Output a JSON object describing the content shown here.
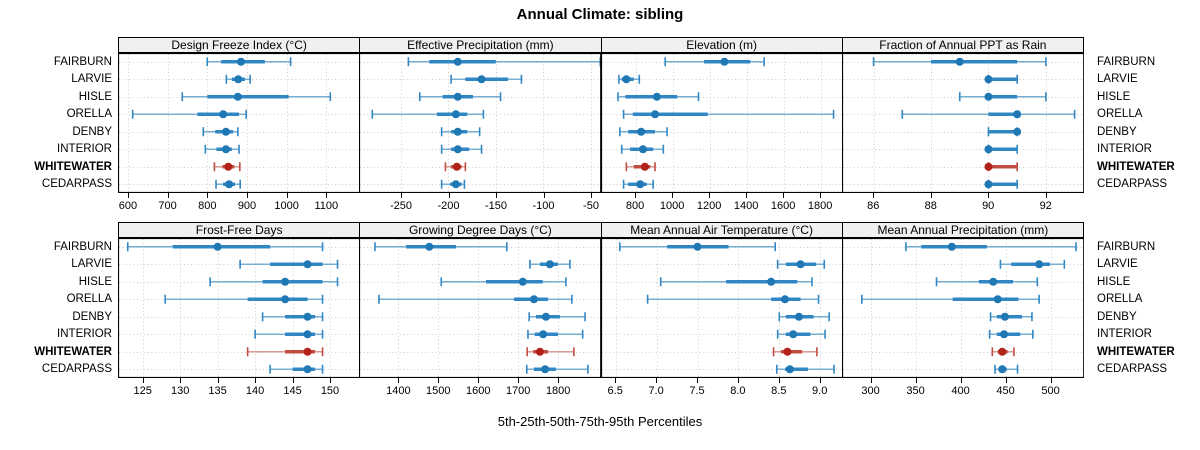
{
  "title": "Annual Climate: sibling",
  "caption": "5th-25th-50th-75th-95th Percentiles",
  "row_labels": [
    "FAIRBURN",
    "LARVIE",
    "HISLE",
    "ORELLA",
    "DENBY",
    "INTERIOR",
    "WHITEWATER",
    "CEDARPASS"
  ],
  "highlight_row": "WHITEWATER",
  "percentiles": [
    "5th",
    "25th",
    "50th",
    "75th",
    "95th"
  ],
  "colors": {
    "blue_dot": "#1F77B4",
    "blue_band": "#3187C4",
    "blue_range": "#77AFD3",
    "red_dot": "#B22218",
    "red_band": "#C14C41",
    "red_range": "#DB9C94",
    "strip_bg": "#F0F0F0",
    "grid": "#CDCDCD",
    "border": "#000000"
  },
  "chart_data": [
    {
      "type": "scatter",
      "title": "Design Freeze Index (°C)",
      "xlim": [
        575,
        1183
      ],
      "ticks": [
        600,
        700,
        800,
        900,
        1000,
        1100
      ],
      "tick_labels": [
        "600",
        "700",
        "800",
        "900",
        "1000",
        "1100"
      ],
      "categories": [
        "FAIRBURN",
        "LARVIE",
        "HISLE",
        "ORELLA",
        "DENBY",
        "INTERIOR",
        "WHITEWATER",
        "CEDARPASS"
      ],
      "values": [
        [
          800,
          835,
          885,
          945,
          1010
        ],
        [
          848,
          862,
          878,
          895,
          908
        ],
        [
          737,
          800,
          877,
          1005,
          1110
        ],
        [
          612,
          775,
          840,
          880,
          898
        ],
        [
          790,
          820,
          847,
          865,
          877
        ],
        [
          795,
          823,
          847,
          862,
          880
        ],
        [
          818,
          838,
          853,
          868,
          882
        ],
        [
          822,
          840,
          855,
          870,
          883
        ]
      ]
    },
    {
      "type": "scatter",
      "title": "Effective Precipitation (mm)",
      "xlim": [
        -294,
        -40
      ],
      "ticks": [
        -250,
        -200,
        -150,
        -100,
        -50
      ],
      "tick_labels": [
        "-250",
        "-200",
        "-150",
        "-100",
        "-50"
      ],
      "categories": [
        "FAIRBURN",
        "LARVIE",
        "HISLE",
        "ORELLA",
        "DENBY",
        "INTERIOR",
        "WHITEWATER",
        "CEDARPASS"
      ],
      "values": [
        [
          -242,
          -220,
          -190,
          -150,
          -40
        ],
        [
          -197,
          -182,
          -165,
          -137,
          -123
        ],
        [
          -230,
          -206,
          -190,
          -174,
          -145
        ],
        [
          -280,
          -212,
          -192,
          -180,
          -163
        ],
        [
          -207,
          -197,
          -190,
          -180,
          -167
        ],
        [
          -207,
          -197,
          -190,
          -178,
          -165
        ],
        [
          -203,
          -197,
          -191,
          -186,
          -182
        ],
        [
          -207,
          -198,
          -192,
          -186,
          -183
        ]
      ]
    },
    {
      "type": "scatter",
      "title": "Elevation (m)",
      "xlim": [
        613,
        1917
      ],
      "ticks": [
        800,
        1000,
        1200,
        1400,
        1600,
        1800
      ],
      "tick_labels": [
        "800",
        "1000",
        "1200",
        "1400",
        "1600",
        "1800"
      ],
      "categories": [
        "FAIRBURN",
        "LARVIE",
        "HISLE",
        "ORELLA",
        "DENBY",
        "INTERIOR",
        "WHITEWATER",
        "CEDARPASS"
      ],
      "values": [
        [
          960,
          1170,
          1280,
          1420,
          1495
        ],
        [
          710,
          725,
          750,
          790,
          820
        ],
        [
          705,
          745,
          915,
          1025,
          1140
        ],
        [
          735,
          785,
          905,
          1190,
          1870
        ],
        [
          715,
          760,
          830,
          905,
          970
        ],
        [
          725,
          770,
          840,
          895,
          950
        ],
        [
          750,
          790,
          850,
          880,
          905
        ],
        [
          735,
          760,
          825,
          860,
          895
        ]
      ]
    },
    {
      "type": "scatter",
      "title": "Fraction of Annual PPT as Rain",
      "xlim": [
        84.9,
        93.3
      ],
      "ticks": [
        86,
        88,
        90,
        92
      ],
      "tick_labels": [
        "86",
        "88",
        "90",
        "92"
      ],
      "categories": [
        "FAIRBURN",
        "LARVIE",
        "HISLE",
        "ORELLA",
        "DENBY",
        "INTERIOR",
        "WHITEWATER",
        "CEDARPASS"
      ],
      "values": [
        [
          86,
          88,
          89,
          91,
          92
        ],
        [
          90,
          90,
          90,
          91,
          91
        ],
        [
          89,
          90,
          90,
          91,
          92
        ],
        [
          87,
          90,
          91,
          91,
          93
        ],
        [
          90,
          90,
          91,
          91,
          91
        ],
        [
          90,
          90,
          90,
          91,
          91
        ],
        [
          90,
          90,
          90,
          91,
          91
        ],
        [
          90,
          90,
          90,
          91,
          91
        ]
      ]
    },
    {
      "type": "scatter",
      "title": "Frost-Free Days",
      "xlim": [
        121.7,
        153.9
      ],
      "ticks": [
        125,
        130,
        135,
        140,
        145,
        150
      ],
      "tick_labels": [
        "125",
        "130",
        "135",
        "140",
        "145",
        "150"
      ],
      "categories": [
        "FAIRBURN",
        "LARVIE",
        "HISLE",
        "ORELLA",
        "DENBY",
        "INTERIOR",
        "WHITEWATER",
        "CEDARPASS"
      ],
      "values": [
        [
          123,
          129,
          135,
          142,
          149
        ],
        [
          138,
          142,
          147,
          149,
          151
        ],
        [
          134,
          141,
          144,
          149,
          151
        ],
        [
          128,
          139,
          144,
          147,
          149
        ],
        [
          141,
          144,
          147,
          148,
          149
        ],
        [
          140,
          144,
          147,
          148,
          149
        ],
        [
          139,
          144,
          147,
          148,
          149
        ],
        [
          142,
          145,
          147,
          148,
          149
        ]
      ]
    },
    {
      "type": "scatter",
      "title": "Growing Degree Days (°C)",
      "xlim": [
        1302,
        1906
      ],
      "ticks": [
        1400,
        1500,
        1600,
        1700,
        1800
      ],
      "tick_labels": [
        "1400",
        "1500",
        "1600",
        "1700",
        "1800"
      ],
      "categories": [
        "FAIRBURN",
        "LARVIE",
        "HISLE",
        "ORELLA",
        "DENBY",
        "INTERIOR",
        "WHITEWATER",
        "CEDARPASS"
      ],
      "values": [
        [
          1342,
          1420,
          1478,
          1545,
          1672
        ],
        [
          1730,
          1755,
          1780,
          1800,
          1830
        ],
        [
          1508,
          1620,
          1712,
          1762,
          1820
        ],
        [
          1352,
          1690,
          1740,
          1775,
          1835
        ],
        [
          1728,
          1745,
          1770,
          1805,
          1868
        ],
        [
          1725,
          1742,
          1763,
          1800,
          1862
        ],
        [
          1723,
          1738,
          1755,
          1775,
          1840
        ],
        [
          1722,
          1740,
          1768,
          1795,
          1875
        ]
      ]
    },
    {
      "type": "scatter",
      "title": "Mean Annual Air Temperature (°C)",
      "xlim": [
        6.32,
        9.27
      ],
      "ticks": [
        6.5,
        7.0,
        7.5,
        8.0,
        8.5,
        9.0
      ],
      "tick_labels": [
        "6.5",
        "7.0",
        "7.5",
        "8.0",
        "8.5",
        "9.0"
      ],
      "categories": [
        "FAIRBURN",
        "LARVIE",
        "HISLE",
        "ORELLA",
        "DENBY",
        "INTERIOR",
        "WHITEWATER",
        "CEDARPASS"
      ],
      "values": [
        [
          6.55,
          7.13,
          7.5,
          7.88,
          8.45
        ],
        [
          8.48,
          8.58,
          8.76,
          8.95,
          9.05
        ],
        [
          7.05,
          7.85,
          8.4,
          8.72,
          8.9
        ],
        [
          6.89,
          8.4,
          8.57,
          8.76,
          8.98
        ],
        [
          8.5,
          8.58,
          8.74,
          8.92,
          9.11
        ],
        [
          8.48,
          8.58,
          8.67,
          8.88,
          9.06
        ],
        [
          8.43,
          8.52,
          8.6,
          8.78,
          8.96
        ],
        [
          8.47,
          8.57,
          8.63,
          8.85,
          9.17
        ]
      ]
    },
    {
      "type": "scatter",
      "title": "Mean Annual Precipitation (mm)",
      "xlim": [
        268,
        536
      ],
      "ticks": [
        300,
        350,
        400,
        450,
        500
      ],
      "tick_labels": [
        "300",
        "350",
        "400",
        "450",
        "500"
      ],
      "categories": [
        "FAIRBURN",
        "LARVIE",
        "HISLE",
        "ORELLA",
        "DENBY",
        "INTERIOR",
        "WHITEWATER",
        "CEDARPASS"
      ],
      "values": [
        [
          339,
          356,
          390,
          429,
          528
        ],
        [
          444,
          456,
          487,
          499,
          515
        ],
        [
          373,
          420,
          436,
          458,
          485
        ],
        [
          290,
          391,
          441,
          464,
          487
        ],
        [
          433,
          440,
          449,
          468,
          479
        ],
        [
          432,
          440,
          448,
          466,
          480
        ],
        [
          435,
          441,
          446,
          452,
          459
        ],
        [
          438,
          442,
          446,
          451,
          463
        ]
      ]
    }
  ]
}
